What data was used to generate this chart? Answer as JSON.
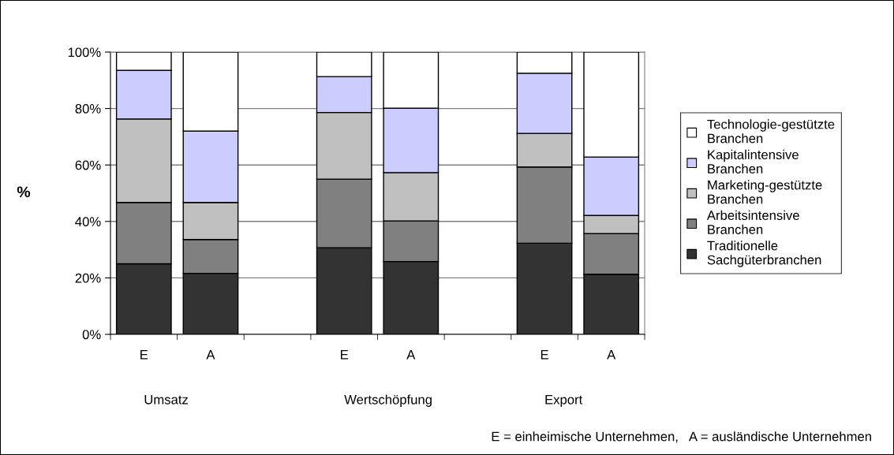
{
  "chart_data": {
    "type": "bar",
    "stacked": true,
    "ylabel": "%",
    "categories": [
      "E",
      "A",
      null,
      "E",
      "A",
      null,
      "E",
      "A"
    ],
    "series": [
      {
        "name": "Traditionelle\nSachgüterbranchen",
        "color": "#333333",
        "values": [
          25.0,
          21.6,
          null,
          30.7,
          25.8,
          null,
          32.3,
          21.3
        ]
      },
      {
        "name": "Arbeitsintensive\nBranchen",
        "color": "#808080",
        "values": [
          21.7,
          12.0,
          null,
          24.3,
          14.4,
          null,
          27.0,
          14.4
        ]
      },
      {
        "name": "Marketing-gestützte\nBranchen",
        "color": "#c0c0c0",
        "values": [
          29.6,
          13.1,
          null,
          23.6,
          17.1,
          null,
          11.9,
          6.4
        ]
      },
      {
        "name": "Kapitalintensive\nBranchen",
        "color": "#ccccff",
        "values": [
          17.2,
          25.3,
          null,
          12.7,
          22.8,
          null,
          21.3,
          20.7
        ]
      },
      {
        "name": "Technologie-gestützte\nBranchen",
        "color": "#ffffff",
        "values": [
          6.5,
          28.0,
          null,
          8.7,
          19.9,
          null,
          7.5,
          37.2
        ]
      }
    ],
    "ylim": [
      0,
      100
    ],
    "yticks": [
      {
        "value": 0,
        "label": "0%"
      },
      {
        "value": 20,
        "label": "20%"
      },
      {
        "value": 40,
        "label": "40%"
      },
      {
        "value": 60,
        "label": "60%"
      },
      {
        "value": 80,
        "label": "80%"
      },
      {
        "value": 100,
        "label": "100%"
      }
    ],
    "grid": "y",
    "legend": "right",
    "annotations": [
      "Umsatz",
      "Wertschöpfung",
      "Export",
      "E = einheimische Unternehmen,   A = ausländische Unternehmen"
    ]
  }
}
